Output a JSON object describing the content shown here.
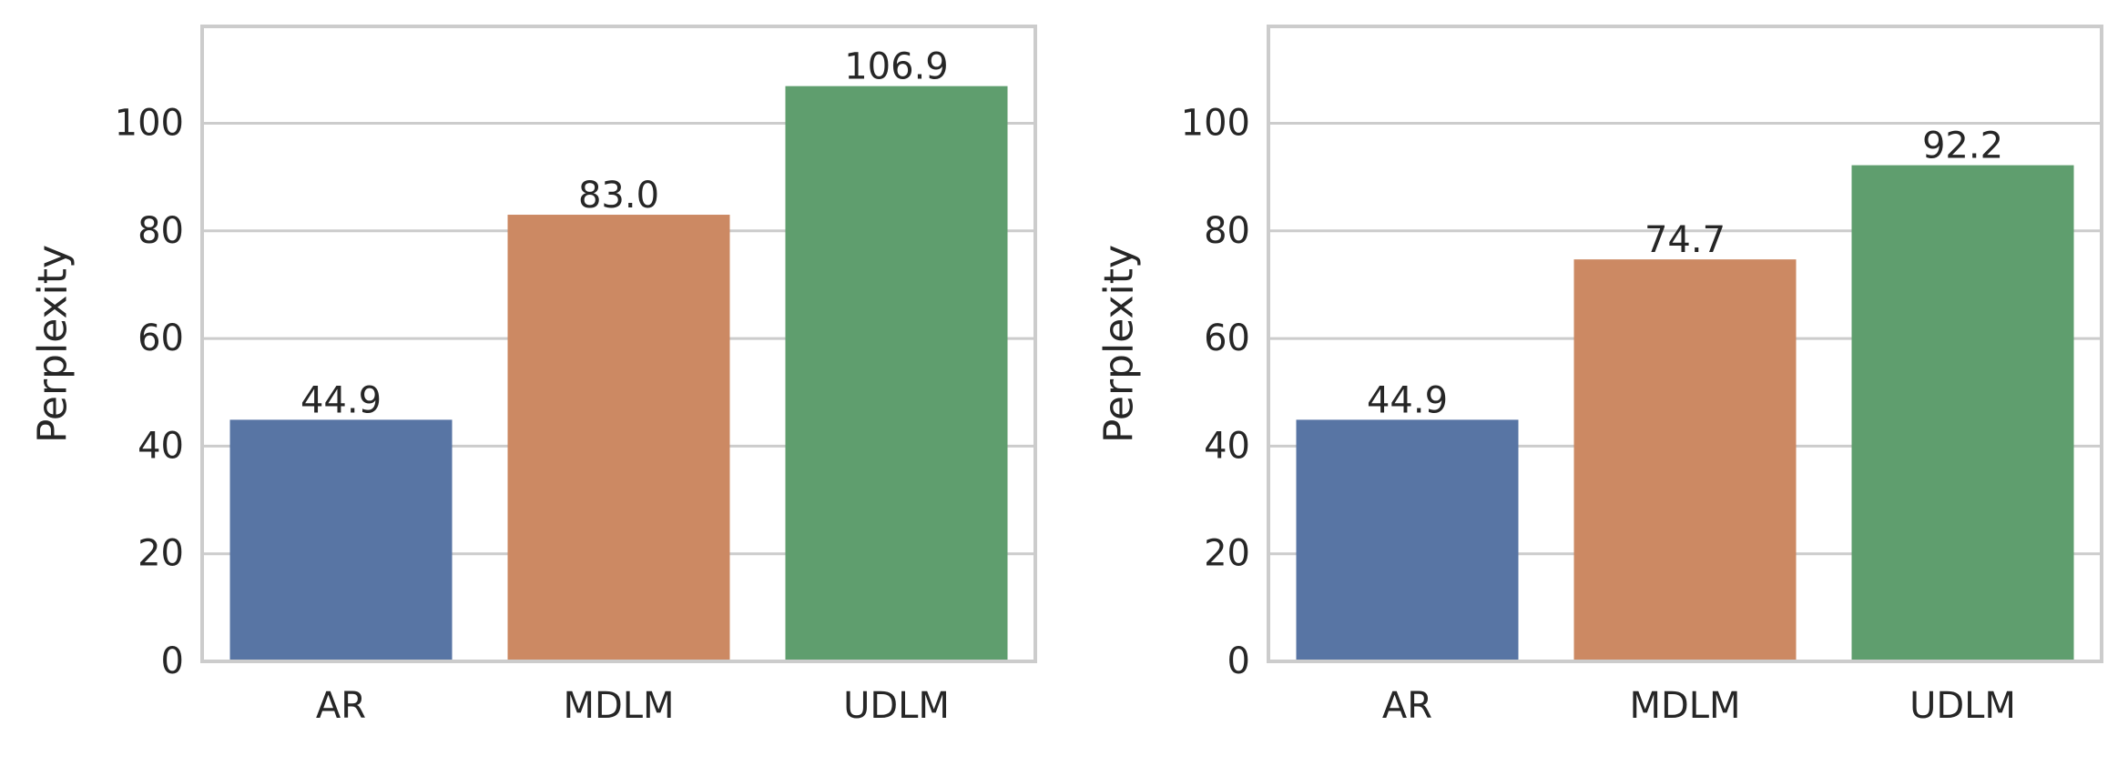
{
  "chart_data": [
    {
      "type": "bar",
      "categories": [
        "AR",
        "MDLM",
        "UDLM"
      ],
      "values": [
        44.9,
        83.0,
        106.9
      ],
      "value_labels": [
        "44.9",
        "83.0",
        "106.9"
      ],
      "colors": [
        "#5875a4",
        "#cc8963",
        "#5f9e6e"
      ],
      "ylabel": "Perplexity",
      "yticks": [
        0,
        20,
        40,
        60,
        80,
        100
      ],
      "ylim": [
        0,
        118
      ],
      "grid": true
    },
    {
      "type": "bar",
      "categories": [
        "AR",
        "MDLM",
        "UDLM"
      ],
      "values": [
        44.9,
        74.7,
        92.2
      ],
      "value_labels": [
        "44.9",
        "74.7",
        "92.2"
      ],
      "colors": [
        "#5875a4",
        "#cc8963",
        "#5f9e6e"
      ],
      "ylabel": "Perplexity",
      "yticks": [
        0,
        20,
        40,
        60,
        80,
        100
      ],
      "ylim": [
        0,
        118
      ],
      "grid": true
    }
  ]
}
